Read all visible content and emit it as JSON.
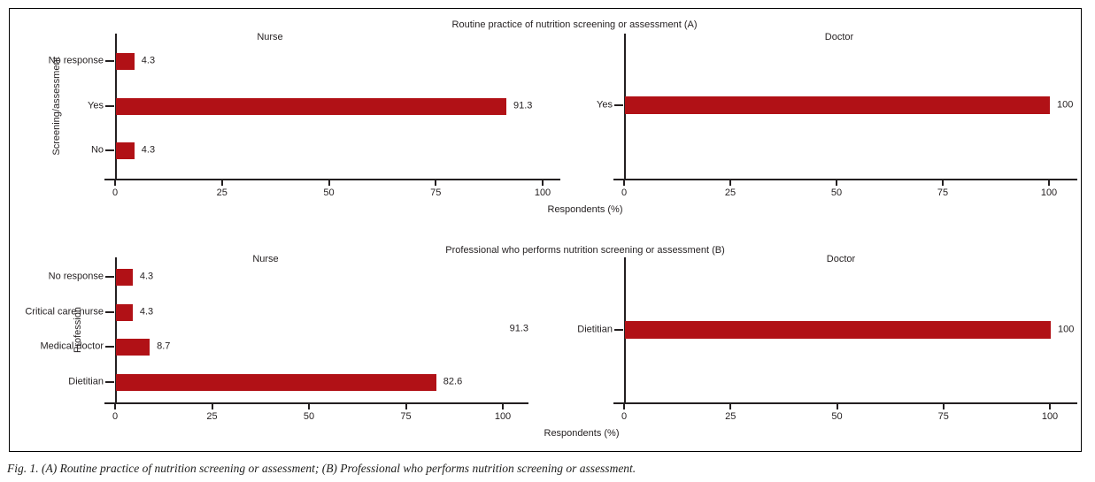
{
  "figure": {
    "section_titles": {
      "a": "Routine practice of nutrition screening or assessment (A)",
      "b": "Professional who performs nutrition screening or assessment (B)"
    },
    "xlabel": "Respondents (%)",
    "stray_label": "91.3",
    "caption": "Fig. 1. (A) Routine practice of nutrition screening or assessment; (B) Professional who performs nutrition screening or assessment.",
    "colors": {
      "bar": "#b11116",
      "axis": "#231f20",
      "text": "#231f20"
    }
  },
  "chart_data": [
    {
      "id": "a_nurse",
      "type": "bar",
      "orientation": "horizontal",
      "section": "A",
      "title": "Nurse",
      "ylabel": "Screening/assessment",
      "xlabel": "Respondents (%)",
      "categories": [
        "No response",
        "Yes",
        "No"
      ],
      "values": [
        4.3,
        91.3,
        4.3
      ],
      "xlim": [
        0,
        100
      ],
      "xticks": [
        0,
        25,
        50,
        75,
        100
      ],
      "grid": false,
      "legend": false
    },
    {
      "id": "a_doctor",
      "type": "bar",
      "orientation": "horizontal",
      "section": "A",
      "title": "Doctor",
      "xlabel": "Respondents (%)",
      "categories": [
        "Yes"
      ],
      "values": [
        100
      ],
      "xlim": [
        0,
        100
      ],
      "xticks": [
        0,
        25,
        50,
        75,
        100
      ],
      "grid": false,
      "legend": false
    },
    {
      "id": "b_nurse",
      "type": "bar",
      "orientation": "horizontal",
      "section": "B",
      "title": "Nurse",
      "ylabel": "Profession",
      "xlabel": "Respondents (%)",
      "categories": [
        "No response",
        "Critical care nurse",
        "Medical doctor",
        "Dietitian"
      ],
      "values": [
        4.3,
        4.3,
        8.7,
        82.6
      ],
      "xlim": [
        0,
        100
      ],
      "xticks": [
        0,
        25,
        50,
        75,
        100
      ],
      "grid": false,
      "legend": false
    },
    {
      "id": "b_doctor",
      "type": "bar",
      "orientation": "horizontal",
      "section": "B",
      "title": "Doctor",
      "xlabel": "Respondents (%)",
      "categories": [
        "Dietitian"
      ],
      "values": [
        100
      ],
      "xlim": [
        0,
        100
      ],
      "xticks": [
        0,
        25,
        50,
        75,
        100
      ],
      "grid": false,
      "legend": false
    }
  ]
}
